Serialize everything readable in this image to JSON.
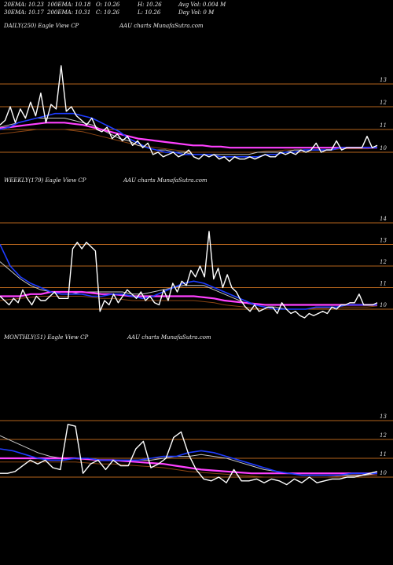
{
  "header": {
    "ema20": "20EMA: 10.23",
    "ema100": "100EMA: 10.18",
    "open": "O: 10.26",
    "high": "H: 10.26",
    "avgvol": "Avg Vol: 0.004  M",
    "ema30": "30EMA: 10.17",
    "ema200": "200EMA: 10.31",
    "close": "C: 10.26",
    "low": "L: 10.26",
    "dayvol": "Day Vol: 0  M"
  },
  "panels": [
    {
      "label": "DAILY(250) Eagle  View  CP",
      "credit": "AAU charts MunafaSutra.com"
    },
    {
      "label": "WEEKLY(179) Eagle  View  CP",
      "credit": "AAU charts MunafaSutra.com"
    },
    {
      "label": "MONTHLY(51) Eagle  View  CP",
      "credit": "AAU charts MunafaSutra.com"
    }
  ],
  "colors": {
    "background": "#000000",
    "price": "#ffffff",
    "grid": "#b5651d",
    "ema_fast": "#1e3cff",
    "ema_slow": "#ff40ff",
    "ema_mid": "#c8c8c8",
    "ema_long": "#8b4513"
  },
  "chart_data": [
    {
      "type": "line",
      "title": "DAILY(250) Eagle  View  CP",
      "yticks": [
        10,
        11,
        12,
        13
      ],
      "ylim": [
        9.35,
        13.75
      ],
      "series": [
        {
          "role": "price",
          "values": [
            11.2,
            11.4,
            12.0,
            11.3,
            11.9,
            11.5,
            12.2,
            11.6,
            12.6,
            11.3,
            12.1,
            11.9,
            13.8,
            11.8,
            12.0,
            11.6,
            11.4,
            11.2,
            11.5,
            11.0,
            10.9,
            11.1,
            10.6,
            10.8,
            10.5,
            10.7,
            10.3,
            10.5,
            10.2,
            10.4,
            9.9,
            10.0,
            9.8,
            9.9,
            10.0,
            9.8,
            9.9,
            10.1,
            9.8,
            9.7,
            9.9,
            9.8,
            9.9,
            9.7,
            9.8,
            9.6,
            9.8,
            9.7,
            9.7,
            9.8,
            9.7,
            9.8,
            9.9,
            9.8,
            9.8,
            10.0,
            9.9,
            10.0,
            9.9,
            10.1,
            10.0,
            10.1,
            10.4,
            10.0,
            10.1,
            10.1,
            10.5,
            10.1,
            10.2,
            10.2,
            10.2,
            10.2,
            10.7,
            10.2,
            10.3
          ]
        },
        {
          "role": "ema_fast",
          "values": [
            11.0,
            11.1,
            11.3,
            11.4,
            11.5,
            11.6,
            11.7,
            11.7,
            11.7,
            11.6,
            11.5,
            11.3,
            11.1,
            10.9,
            10.6,
            10.4,
            10.2,
            10.1,
            10.0,
            10.0,
            9.9,
            9.9,
            9.9,
            9.9,
            9.8,
            9.8,
            9.8,
            9.8,
            9.8,
            9.9,
            9.9,
            10.0,
            10.0,
            10.1,
            10.1,
            10.1,
            10.1,
            10.2,
            10.2,
            10.2,
            10.2,
            10.2
          ]
        },
        {
          "role": "ema_mid",
          "values": [
            11.1,
            11.2,
            11.3,
            11.4,
            11.5,
            11.5,
            11.5,
            11.5,
            11.4,
            11.3,
            11.2,
            11.0,
            10.8,
            10.6,
            10.5,
            10.3,
            10.2,
            10.1,
            10.1,
            10.0,
            10.0,
            9.9,
            9.9,
            9.9,
            9.9,
            9.9,
            9.9,
            9.9,
            10.0,
            10.0,
            10.0,
            10.0,
            10.1,
            10.1,
            10.1,
            10.1,
            10.1,
            10.2,
            10.2,
            10.2,
            10.2,
            10.2
          ]
        },
        {
          "role": "ema_slow",
          "values": [
            11.05,
            11.1,
            11.15,
            11.2,
            11.25,
            11.3,
            11.3,
            11.3,
            11.25,
            11.2,
            11.1,
            11.0,
            10.9,
            10.8,
            10.7,
            10.6,
            10.55,
            10.5,
            10.45,
            10.4,
            10.35,
            10.3,
            10.3,
            10.25,
            10.25,
            10.2,
            10.2,
            10.2,
            10.2,
            10.2,
            10.2,
            10.2,
            10.2,
            10.2,
            10.2,
            10.2,
            10.2,
            10.2,
            10.2,
            10.2,
            10.2,
            10.2
          ]
        },
        {
          "role": "ema_long",
          "values": [
            10.8,
            10.85,
            10.9,
            10.95,
            11.0,
            11.0,
            11.0,
            11.0,
            10.95,
            10.9,
            10.8,
            10.7,
            10.6,
            10.5,
            10.4,
            10.3,
            10.25,
            10.2,
            10.15,
            10.1,
            10.05,
            10.0,
            10.0,
            10.0,
            10.0,
            10.0,
            10.0,
            10.0,
            10.0,
            10.05,
            10.05,
            10.1,
            10.1,
            10.1,
            10.1,
            10.1,
            10.1,
            10.15,
            10.15,
            10.15,
            10.15,
            10.2
          ]
        }
      ]
    },
    {
      "type": "line",
      "title": "WEEKLY(179) Eagle  View  CP",
      "yticks": [
        10,
        11,
        12,
        13,
        14
      ],
      "ylim": [
        9.35,
        14.75
      ],
      "series": [
        {
          "role": "price",
          "values": [
            10.6,
            10.4,
            10.2,
            10.5,
            10.3,
            10.9,
            10.5,
            10.2,
            10.6,
            10.4,
            10.4,
            10.6,
            10.8,
            10.5,
            10.5,
            10.5,
            12.8,
            13.1,
            12.8,
            13.1,
            12.9,
            12.7,
            9.9,
            10.4,
            10.2,
            10.7,
            10.3,
            10.6,
            10.9,
            10.7,
            10.5,
            10.8,
            10.4,
            10.6,
            10.3,
            10.2,
            10.9,
            10.4,
            11.2,
            10.8,
            11.3,
            11.1,
            11.8,
            11.5,
            12.0,
            11.5,
            13.6,
            11.4,
            11.9,
            11.0,
            11.6,
            11.0,
            10.8,
            10.4,
            10.1,
            9.9,
            10.2,
            9.9,
            10.0,
            10.1,
            10.1,
            9.8,
            10.3,
            10.0,
            9.8,
            9.9,
            9.7,
            9.6,
            9.8,
            9.7,
            9.8,
            9.9,
            9.8,
            10.1,
            10.0,
            10.2,
            10.2,
            10.3,
            10.3,
            10.7,
            10.2,
            10.2,
            10.2,
            10.3
          ]
        },
        {
          "role": "ema_fast",
          "values": [
            13.0,
            12.0,
            11.5,
            11.2,
            11.0,
            10.8,
            10.7,
            10.7,
            10.7,
            10.6,
            10.6,
            10.7,
            10.7,
            10.6,
            10.5,
            10.6,
            10.8,
            11.0,
            11.2,
            11.3,
            11.2,
            11.0,
            10.8,
            10.6,
            10.4,
            10.2,
            10.1,
            10.0,
            10.0,
            10.0,
            10.0,
            10.1,
            10.1,
            10.1,
            10.2,
            10.2,
            10.2,
            10.2
          ]
        },
        {
          "role": "ema_mid",
          "values": [
            12.2,
            11.8,
            11.4,
            11.1,
            10.9,
            10.8,
            10.7,
            10.7,
            10.8,
            10.8,
            10.8,
            10.8,
            10.8,
            10.7,
            10.7,
            10.8,
            10.9,
            11.0,
            11.1,
            11.1,
            11.1,
            10.9,
            10.7,
            10.5,
            10.3,
            10.2,
            10.1,
            10.1,
            10.0,
            10.0,
            10.0,
            10.1,
            10.1,
            10.1,
            10.2,
            10.2,
            10.2,
            10.2
          ]
        },
        {
          "role": "ema_slow",
          "values": [
            10.6,
            10.6,
            10.6,
            10.7,
            10.7,
            10.8,
            10.8,
            10.8,
            10.8,
            10.75,
            10.7,
            10.7,
            10.65,
            10.6,
            10.6,
            10.6,
            10.6,
            10.6,
            10.6,
            10.6,
            10.55,
            10.5,
            10.4,
            10.35,
            10.3,
            10.25,
            10.2,
            10.2,
            10.2,
            10.2,
            10.2,
            10.2,
            10.2,
            10.2,
            10.2,
            10.2,
            10.2,
            10.2
          ]
        },
        {
          "role": "ema_long",
          "values": [
            10.4,
            10.45,
            10.5,
            10.55,
            10.6,
            10.6,
            10.6,
            10.6,
            10.6,
            10.55,
            10.5,
            10.5,
            10.45,
            10.4,
            10.4,
            10.4,
            10.4,
            10.4,
            10.4,
            10.4,
            10.35,
            10.3,
            10.2,
            10.15,
            10.1,
            10.05,
            10.0,
            10.0,
            10.0,
            10.0,
            10.0,
            10.05,
            10.05,
            10.1,
            10.1,
            10.1,
            10.1,
            10.15
          ]
        }
      ]
    },
    {
      "type": "line",
      "title": "MONTHLY(51) Eagle  View  CP",
      "yticks": [
        10,
        11,
        12,
        13
      ],
      "ylim": [
        9.35,
        13.75
      ],
      "series": [
        {
          "role": "price",
          "values": [
            10.2,
            10.2,
            10.3,
            10.6,
            10.9,
            10.7,
            10.9,
            10.5,
            10.4,
            12.8,
            12.7,
            10.2,
            10.7,
            10.9,
            10.4,
            10.9,
            10.6,
            10.6,
            11.5,
            11.9,
            10.5,
            10.7,
            11.0,
            12.1,
            12.4,
            11.2,
            10.4,
            9.9,
            9.8,
            10.0,
            9.7,
            10.4,
            9.8,
            9.8,
            9.9,
            9.7,
            9.9,
            9.8,
            9.6,
            9.9,
            9.7,
            10.0,
            9.7,
            9.8,
            9.9,
            9.9,
            10.0,
            10.0,
            10.1,
            10.2,
            10.3
          ]
        },
        {
          "role": "ema_fast",
          "values": [
            11.5,
            11.4,
            11.2,
            11.0,
            10.9,
            10.9,
            11.0,
            11.0,
            10.9,
            10.9,
            10.9,
            10.9,
            11.0,
            11.1,
            11.1,
            11.3,
            11.4,
            11.3,
            11.1,
            10.9,
            10.7,
            10.5,
            10.3,
            10.2,
            10.1,
            10.1,
            10.1,
            10.1,
            10.2,
            10.2,
            10.2
          ]
        },
        {
          "role": "ema_mid",
          "values": [
            12.2,
            11.9,
            11.6,
            11.3,
            11.1,
            11.0,
            11.0,
            11.0,
            10.9,
            10.9,
            10.9,
            10.9,
            10.9,
            11.0,
            11.1,
            11.1,
            11.2,
            11.1,
            11.0,
            10.8,
            10.6,
            10.4,
            10.3,
            10.2,
            10.1,
            10.1,
            10.1,
            10.1,
            10.1,
            10.1,
            10.2
          ]
        },
        {
          "role": "ema_slow",
          "values": [
            11.0,
            11.0,
            11.0,
            11.0,
            11.0,
            11.0,
            11.0,
            10.95,
            10.9,
            10.9,
            10.85,
            10.8,
            10.75,
            10.7,
            10.6,
            10.5,
            10.4,
            10.35,
            10.3,
            10.25,
            10.2,
            10.2,
            10.2,
            10.2,
            10.2,
            10.2,
            10.2,
            10.2,
            10.2,
            10.2,
            10.2
          ]
        },
        {
          "role": "ema_long",
          "values": [
            10.8,
            10.8,
            10.8,
            10.8,
            10.8,
            10.8,
            10.8,
            10.75,
            10.7,
            10.7,
            10.65,
            10.6,
            10.55,
            10.5,
            10.4,
            10.3,
            10.25,
            10.2,
            10.15,
            10.1,
            10.05,
            10.0,
            10.0,
            10.0,
            10.0,
            10.0,
            10.0,
            10.05,
            10.05,
            10.1,
            10.1
          ]
        }
      ]
    }
  ]
}
